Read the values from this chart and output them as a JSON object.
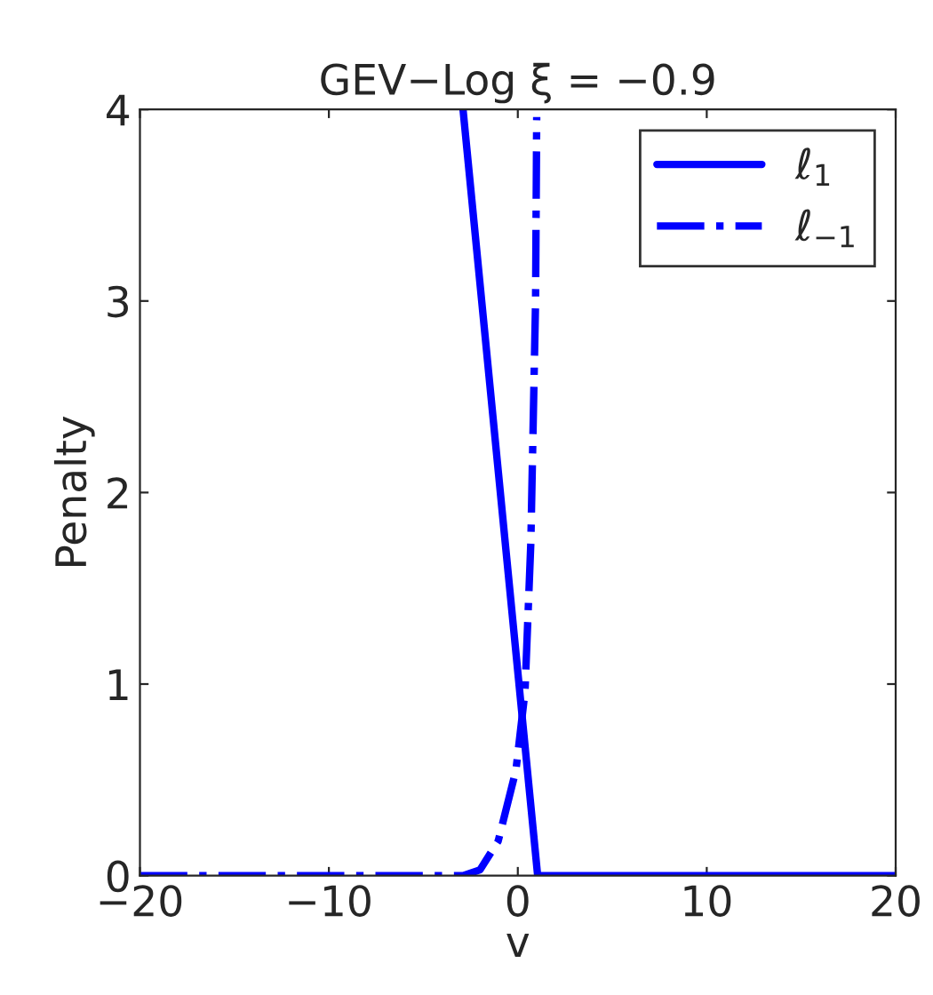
{
  "chart_data": {
    "type": "line",
    "title": "GEV−Log ξ = −0.9",
    "xlabel": "v",
    "ylabel": "Penalty",
    "xlim": [
      -20,
      20
    ],
    "xticks": [
      {
        "value": -20,
        "label": "−20"
      },
      {
        "value": -10,
        "label": "−10"
      },
      0,
      10,
      20
    ],
    "ylim": [
      0,
      4
    ],
    "yticks": [
      0,
      1,
      2,
      3,
      4
    ],
    "grid": false,
    "legend": "top right",
    "series": [
      {
        "name": "ℓ$_{1}$",
        "color": "#0000ff",
        "line_style": "solid",
        "x": [
          -2.9,
          1.05,
          20
        ],
        "values": [
          4,
          0,
          0
        ]
      },
      {
        "name": "ℓ$_{−1}$",
        "color": "#0000ff",
        "line_style": "dashdot",
        "x": [
          -20,
          -2.9,
          -2.0,
          -1.04,
          -0.1,
          0.38,
          0.69,
          0.94,
          1.0
        ],
        "values": [
          0,
          0,
          0.03,
          0.18,
          0.55,
          0.96,
          1.74,
          3.0,
          3.96
        ]
      }
    ]
  }
}
